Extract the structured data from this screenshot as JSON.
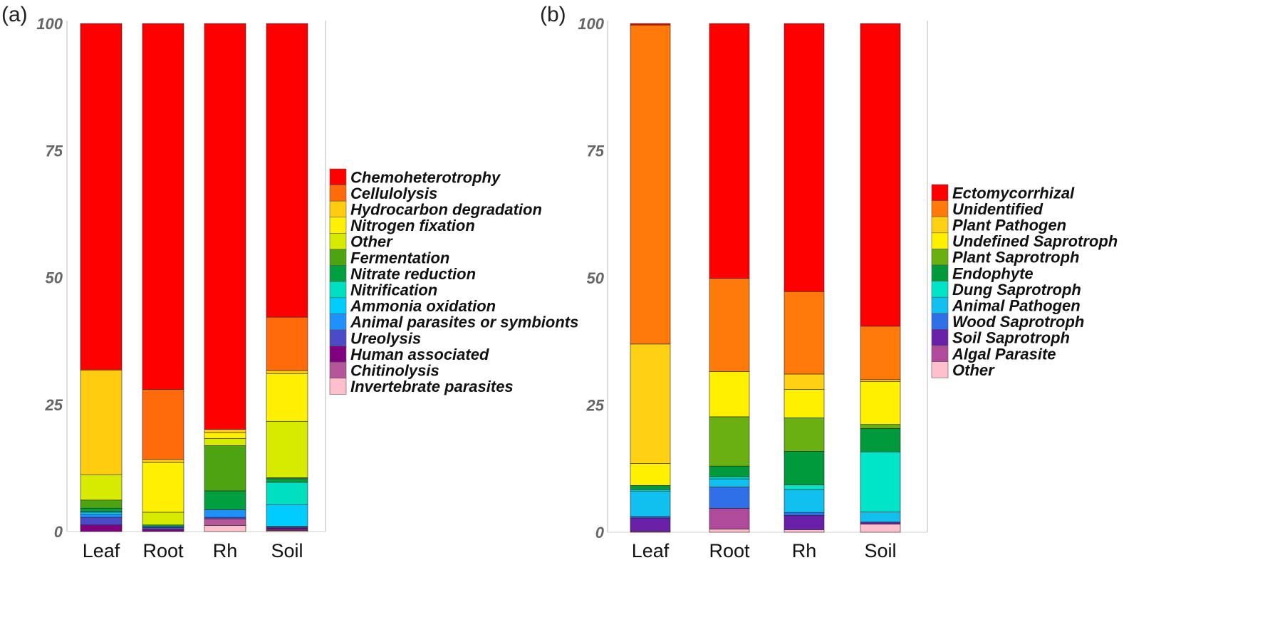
{
  "chart_data": [
    {
      "type": "stacked-bar",
      "panel_label": "(a)",
      "categories": [
        "Leaf",
        "Root",
        "Rh",
        "Soil"
      ],
      "ylim": [
        0,
        100
      ],
      "yticks": [
        "0",
        "25",
        "50",
        "75",
        "100"
      ],
      "series": [
        {
          "name": "Invertebrate parasites",
          "color": "#FFC0CB",
          "values": [
            0.0,
            0.0,
            1.2,
            0.2
          ]
        },
        {
          "name": "Chitinolysis",
          "color": "#B5559A",
          "values": [
            0.0,
            0.0,
            1.3,
            0.2
          ]
        },
        {
          "name": "Human associated",
          "color": "#800080",
          "values": [
            1.3,
            0.4,
            0.0,
            0.3
          ]
        },
        {
          "name": "Ureolysis",
          "color": "#4B4BC8",
          "values": [
            1.5,
            0.4,
            0.3,
            0.2
          ]
        },
        {
          "name": "Animal parasites or symbionts",
          "color": "#1E90FF",
          "values": [
            0.6,
            0.2,
            1.5,
            0.1
          ]
        },
        {
          "name": "Ammonia oxidation",
          "color": "#00CCFF",
          "values": [
            0.4,
            0.0,
            0.0,
            4.3
          ]
        },
        {
          "name": "Nitrification",
          "color": "#00E0C0",
          "values": [
            0.2,
            0.0,
            0.0,
            4.4
          ]
        },
        {
          "name": "Nitrate reduction",
          "color": "#00A040",
          "values": [
            0.6,
            0.3,
            3.7,
            0.7
          ]
        },
        {
          "name": "Fermentation",
          "color": "#4CA510",
          "values": [
            1.6,
            0.0,
            8.9,
            0.2
          ]
        },
        {
          "name": "Other",
          "color": "#D6EB00",
          "values": [
            5.0,
            2.5,
            1.4,
            11.1
          ]
        },
        {
          "name": "Nitrogen fixation",
          "color": "#FFEF00",
          "values": [
            0.0,
            9.8,
            1.2,
            9.4
          ]
        },
        {
          "name": "Hydrocarbon degradation",
          "color": "#FFCC10",
          "values": [
            20.6,
            0.6,
            0.6,
            0.6
          ]
        },
        {
          "name": "Cellulolysis",
          "color": "#FF6A0A",
          "values": [
            0.0,
            13.8,
            0.0,
            10.5
          ]
        },
        {
          "name": "Chemoheterotrophy",
          "color": "#FF0000",
          "values": [
            68.2,
            72.0,
            79.9,
            57.8
          ]
        }
      ],
      "legend": [
        "Chemoheterotrophy",
        "Cellulolysis",
        "Hydrocarbon degradation",
        "Nitrogen fixation",
        "Other",
        "Fermentation",
        "Nitrate reduction",
        "Nitrification",
        "Ammonia oxidation",
        "Animal parasites or symbionts",
        "Ureolysis",
        "Human associated",
        "Chitinolysis",
        "Invertebrate parasites"
      ]
    },
    {
      "type": "stacked-bar",
      "panel_label": "(b)",
      "categories": [
        "Leaf",
        "Root",
        "Rh",
        "Soil"
      ],
      "ylim": [
        0,
        100
      ],
      "yticks": [
        "0",
        "25",
        "50",
        "75",
        "100"
      ],
      "series": [
        {
          "name": "Other",
          "color": "#FFC0CB",
          "values": [
            0.0,
            0.6,
            0.5,
            1.6
          ]
        },
        {
          "name": "Algal Parasite",
          "color": "#B04A9A",
          "values": [
            0.2,
            4.1,
            0.0,
            0.0
          ]
        },
        {
          "name": "Soil Saprotroph",
          "color": "#6A1FA8",
          "values": [
            2.6,
            0.0,
            2.8,
            0.4
          ]
        },
        {
          "name": "Wood Saprotroph",
          "color": "#2F6FE8",
          "values": [
            0.3,
            4.2,
            0.6,
            0.0
          ]
        },
        {
          "name": "Animal Pathogen",
          "color": "#12C0F0",
          "values": [
            5.0,
            1.6,
            4.5,
            2.0
          ]
        },
        {
          "name": "Dung Saprotroph",
          "color": "#00E5C8",
          "values": [
            0.3,
            0.4,
            0.9,
            11.8
          ]
        },
        {
          "name": "Endophyte",
          "color": "#009A3C",
          "values": [
            0.8,
            2.1,
            6.6,
            4.6
          ]
        },
        {
          "name": "Plant Saprotroph",
          "color": "#6AB010",
          "values": [
            0.0,
            9.7,
            6.6,
            0.8
          ]
        },
        {
          "name": "Undefined Saprotroph",
          "color": "#FFF000",
          "values": [
            4.3,
            8.9,
            5.6,
            8.4
          ]
        },
        {
          "name": "Plant Pathogen",
          "color": "#FFD014",
          "values": [
            23.5,
            0.0,
            3.0,
            0.4
          ]
        },
        {
          "name": "Unidentified",
          "color": "#FF7A0A",
          "values": [
            62.7,
            18.3,
            16.2,
            10.5
          ]
        },
        {
          "name": "Ectomycorrhizal",
          "color": "#FF0000",
          "values": [
            0.3,
            50.1,
            52.7,
            59.5
          ]
        }
      ],
      "legend": [
        "Ectomycorrhizal",
        "Unidentified",
        "Plant Pathogen",
        "Undefined Saprotroph",
        "Plant Saprotroph",
        "Endophyte",
        "Dung Saprotroph",
        "Animal Pathogen",
        "Wood Saprotroph",
        "Soil Saprotroph",
        "Algal Parasite",
        "Other"
      ]
    }
  ]
}
